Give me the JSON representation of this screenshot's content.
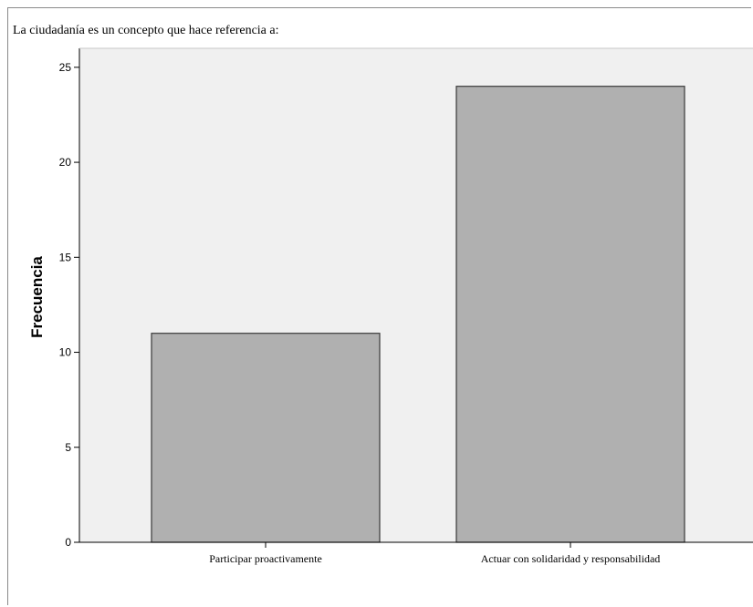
{
  "chart_data": {
    "type": "bar",
    "title": "La ciudadanía es un concepto que hace referencia a:",
    "xlabel": "",
    "ylabel": "Frecuencia",
    "categories": [
      "Participar proactivamente",
      "Actuar con solidaridad y responsabilidad"
    ],
    "values": [
      11,
      24
    ],
    "ylim": [
      0,
      26
    ],
    "yticks": [
      0,
      5,
      10,
      15,
      20,
      25
    ],
    "grid": false,
    "legend": "none",
    "colors": {
      "bar_fill": "#b0b0b0",
      "bar_stroke": "#3a3a3a",
      "plot_background": "#f0f0f0",
      "axis": "#000000"
    }
  }
}
